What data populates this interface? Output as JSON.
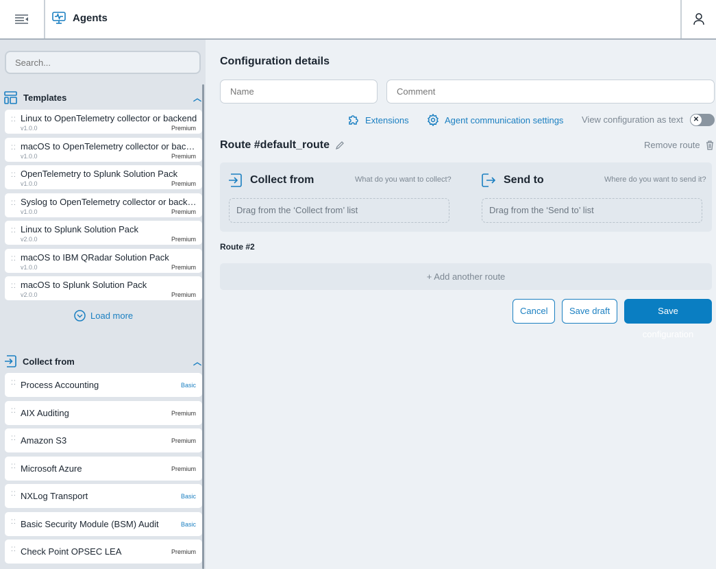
{
  "header": {
    "title": "Agents"
  },
  "sidebar": {
    "search_placeholder": "Search...",
    "templates_title": "Templates",
    "templates": [
      {
        "name": "Linux to OpenTelemetry collector or backend",
        "version": "v1.0.0",
        "tier": "Premium"
      },
      {
        "name": "macOS to OpenTelemetry collector or backend",
        "version": "v1.0.0",
        "tier": "Premium"
      },
      {
        "name": "OpenTelemetry to Splunk Solution Pack",
        "version": "v1.0.0",
        "tier": "Premium"
      },
      {
        "name": "Syslog to OpenTelemetry collector or backend",
        "version": "v1.0.0",
        "tier": "Premium"
      },
      {
        "name": "Linux to Splunk Solution Pack",
        "version": "v2.0.0",
        "tier": "Premium"
      },
      {
        "name": "macOS to IBM QRadar Solution Pack",
        "version": "v1.0.0",
        "tier": "Premium"
      },
      {
        "name": "macOS to Splunk Solution Pack",
        "version": "v2.0.0",
        "tier": "Premium"
      }
    ],
    "load_more": "Load more",
    "collect_title": "Collect from",
    "collect": [
      {
        "name": "Process Accounting",
        "tier": "Basic"
      },
      {
        "name": "AIX Auditing",
        "tier": "Premium"
      },
      {
        "name": "Amazon S3",
        "tier": "Premium"
      },
      {
        "name": "Microsoft Azure",
        "tier": "Premium"
      },
      {
        "name": "NXLog Transport",
        "tier": "Basic"
      },
      {
        "name": "Basic Security Module (BSM) Audit",
        "tier": "Basic"
      },
      {
        "name": "Check Point OPSEC LEA",
        "tier": "Premium"
      }
    ]
  },
  "main": {
    "title": "Configuration details",
    "name_placeholder": "Name",
    "comment_placeholder": "Comment",
    "extensions": "Extensions",
    "agent_comm": "Agent communication settings",
    "view_text": "View configuration as text",
    "view_text_on": false,
    "route_title": "Route #default_route",
    "remove_route": "Remove route",
    "collect_from": "Collect from",
    "collect_hint": "What do you want to collect?",
    "collect_drop": "Drag from the ‘Collect from’ list",
    "send_to": "Send to",
    "send_hint": "Where do you want to send it?",
    "send_drop": "Drag from the ‘Send to’ list",
    "route2": "Route #2",
    "add_route": "+ Add another route",
    "cancel": "Cancel",
    "save_draft": "Save draft",
    "save_config": "Save configuration"
  },
  "colors": {
    "accent": "#1a7fc1",
    "primary_button": "#0a7ec2"
  }
}
